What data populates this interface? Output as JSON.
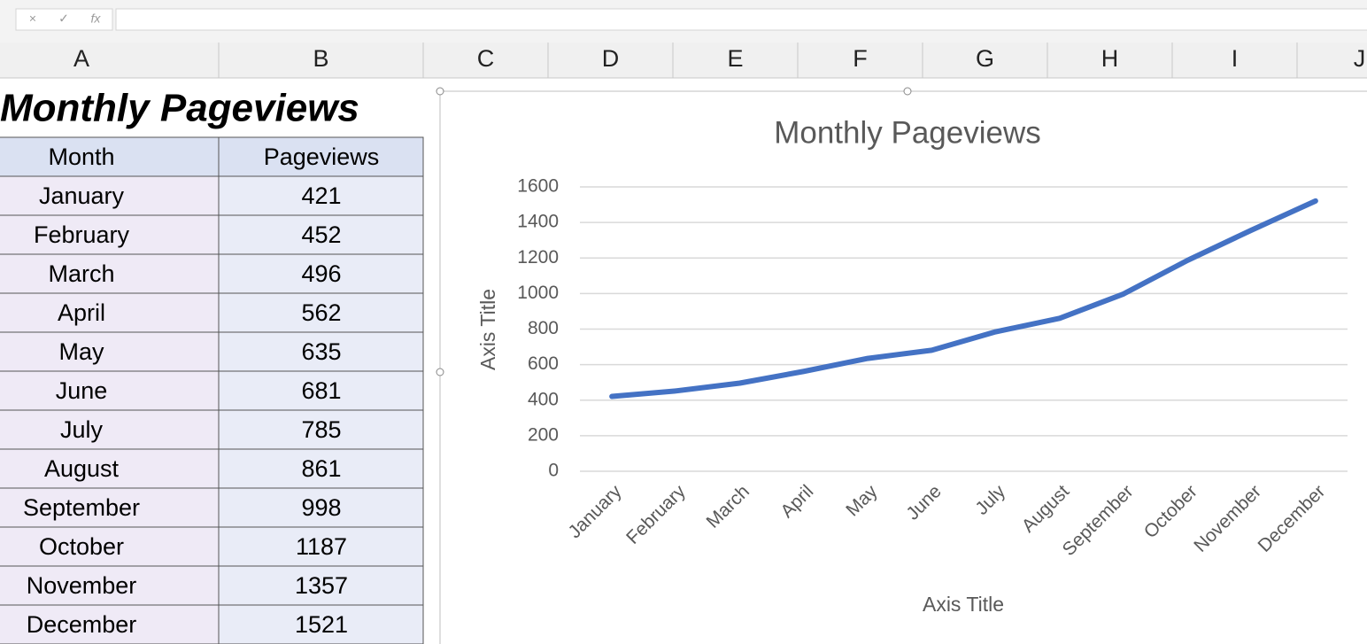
{
  "formula_bar": {
    "buttons": [
      "×",
      "✓",
      "fx"
    ]
  },
  "sheet": {
    "columns": [
      "A",
      "B",
      "C",
      "D",
      "E",
      "F",
      "G",
      "H",
      "I",
      "J"
    ],
    "title": "Monthly Pageviews",
    "headers": [
      "Month",
      "Pageviews"
    ]
  },
  "chart_data": {
    "type": "line",
    "title": "Monthly Pageviews",
    "x_label": "Axis Title",
    "y_label": "Axis Title",
    "categories": [
      "January",
      "February",
      "March",
      "April",
      "May",
      "June",
      "July",
      "August",
      "September",
      "October",
      "November",
      "December"
    ],
    "values": [
      421,
      452,
      496,
      562,
      635,
      681,
      785,
      861,
      998,
      1187,
      1357,
      1521
    ],
    "color": "#4472c4",
    "ylim": [
      0,
      1600
    ],
    "yticks": [
      0,
      200,
      400,
      600,
      800,
      1000,
      1200,
      1400,
      1600
    ],
    "grid": true
  }
}
